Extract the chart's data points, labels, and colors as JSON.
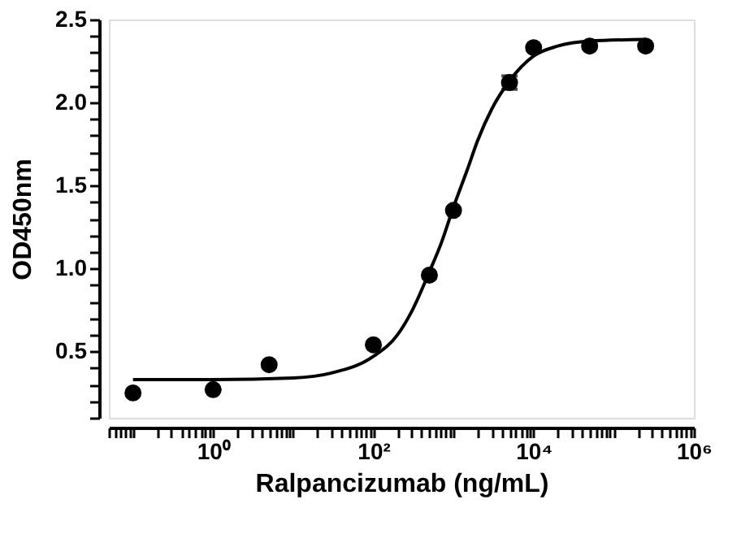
{
  "chart_data": {
    "type": "scatter",
    "xlabel": "Ralpancizumab (ng/mL)",
    "ylabel": "OD450nm",
    "log": "x",
    "grid": false,
    "xlim": [
      0.05,
      1000000
    ],
    "ylim": [
      0.1,
      2.5
    ],
    "xticks": [
      {
        "value": 0.05,
        "label": null
      },
      {
        "value": 0.06,
        "label": null
      },
      {
        "value": 0.07,
        "label": null
      },
      {
        "value": 0.08,
        "label": null
      },
      {
        "value": 0.09,
        "label": null
      },
      {
        "value": 0.1,
        "label": null
      },
      {
        "value": 0.2,
        "label": null
      },
      {
        "value": 0.3,
        "label": null
      },
      {
        "value": 0.4,
        "label": null
      },
      {
        "value": 0.5,
        "label": null
      },
      {
        "value": 0.6,
        "label": null
      },
      {
        "value": 0.7,
        "label": null
      },
      {
        "value": 0.8,
        "label": null
      },
      {
        "value": 0.9,
        "label": null
      },
      {
        "value": 1,
        "label": "10⁰"
      },
      {
        "value": 2,
        "label": null
      },
      {
        "value": 3,
        "label": null
      },
      {
        "value": 4,
        "label": null
      },
      {
        "value": 5,
        "label": null
      },
      {
        "value": 6,
        "label": null
      },
      {
        "value": 7,
        "label": null
      },
      {
        "value": 8,
        "label": null
      },
      {
        "value": 9,
        "label": null
      },
      {
        "value": 10,
        "label": null
      },
      {
        "value": 20,
        "label": null
      },
      {
        "value": 30,
        "label": null
      },
      {
        "value": 40,
        "label": null
      },
      {
        "value": 50,
        "label": null
      },
      {
        "value": 60,
        "label": null
      },
      {
        "value": 70,
        "label": null
      },
      {
        "value": 80,
        "label": null
      },
      {
        "value": 90,
        "label": null
      },
      {
        "value": 100,
        "label": "10²"
      },
      {
        "value": 200,
        "label": null
      },
      {
        "value": 300,
        "label": null
      },
      {
        "value": 400,
        "label": null
      },
      {
        "value": 500,
        "label": null
      },
      {
        "value": 600,
        "label": null
      },
      {
        "value": 700,
        "label": null
      },
      {
        "value": 800,
        "label": null
      },
      {
        "value": 900,
        "label": null
      },
      {
        "value": 1000,
        "label": null
      },
      {
        "value": 2000,
        "label": null
      },
      {
        "value": 3000,
        "label": null
      },
      {
        "value": 4000,
        "label": null
      },
      {
        "value": 5000,
        "label": null
      },
      {
        "value": 6000,
        "label": null
      },
      {
        "value": 7000,
        "label": null
      },
      {
        "value": 8000,
        "label": null
      },
      {
        "value": 9000,
        "label": null
      },
      {
        "value": 10000,
        "label": "10⁴"
      },
      {
        "value": 20000,
        "label": null
      },
      {
        "value": 30000,
        "label": null
      },
      {
        "value": 40000,
        "label": null
      },
      {
        "value": 50000,
        "label": null
      },
      {
        "value": 60000,
        "label": null
      },
      {
        "value": 70000,
        "label": null
      },
      {
        "value": 80000,
        "label": null
      },
      {
        "value": 90000,
        "label": null
      },
      {
        "value": 100000,
        "label": null
      },
      {
        "value": 200000,
        "label": null
      },
      {
        "value": 300000,
        "label": null
      },
      {
        "value": 400000,
        "label": null
      },
      {
        "value": 500000,
        "label": null
      },
      {
        "value": 600000,
        "label": null
      },
      {
        "value": 700000,
        "label": null
      },
      {
        "value": 800000,
        "label": null
      },
      {
        "value": 900000,
        "label": null
      },
      {
        "value": 1000000,
        "label": "10⁶"
      }
    ],
    "yticks": [
      {
        "value": 0.1,
        "label": null
      },
      {
        "value": 0.2,
        "label": null
      },
      {
        "value": 0.3,
        "label": null
      },
      {
        "value": 0.4,
        "label": null
      },
      {
        "value": 0.5,
        "label": "0.5"
      },
      {
        "value": 0.6,
        "label": null
      },
      {
        "value": 0.7,
        "label": null
      },
      {
        "value": 0.8,
        "label": null
      },
      {
        "value": 0.9,
        "label": null
      },
      {
        "value": 1.0,
        "label": "1.0"
      },
      {
        "value": 1.1,
        "label": null
      },
      {
        "value": 1.2,
        "label": null
      },
      {
        "value": 1.3,
        "label": null
      },
      {
        "value": 1.4,
        "label": null
      },
      {
        "value": 1.5,
        "label": "1.5"
      },
      {
        "value": 1.6,
        "label": null
      },
      {
        "value": 1.7,
        "label": null
      },
      {
        "value": 1.8,
        "label": null
      },
      {
        "value": 1.9,
        "label": null
      },
      {
        "value": 2.0,
        "label": "2.0"
      },
      {
        "value": 2.1,
        "label": null
      },
      {
        "value": 2.2,
        "label": null
      },
      {
        "value": 2.3,
        "label": null
      },
      {
        "value": 2.4,
        "label": null
      },
      {
        "value": 2.5,
        "label": "2.5"
      }
    ],
    "series": [
      {
        "type": "line",
        "marker": "none",
        "color": "#000000",
        "x": [
          0.1,
          1,
          10,
          30,
          100,
          200,
          300,
          500,
          700,
          1000,
          1500,
          2000,
          3000,
          5000,
          10000,
          20000,
          50000,
          250000
        ],
        "values": [
          0.33,
          0.33,
          0.34,
          0.37,
          0.47,
          0.6,
          0.74,
          0.98,
          1.15,
          1.37,
          1.6,
          1.77,
          1.96,
          2.13,
          2.28,
          2.34,
          2.37,
          2.38
        ]
      },
      {
        "marker": "circle",
        "color": "#000000",
        "x": [
          0.1,
          1,
          5,
          100,
          500,
          1000,
          5000,
          10000,
          50000,
          250000
        ],
        "values": [
          0.25,
          0.27,
          0.42,
          0.54,
          0.96,
          1.35,
          2.12,
          2.33,
          2.34,
          2.34
        ],
        "errors": [
          null,
          null,
          null,
          null,
          null,
          null,
          0.04,
          null,
          null,
          null
        ]
      }
    ]
  }
}
